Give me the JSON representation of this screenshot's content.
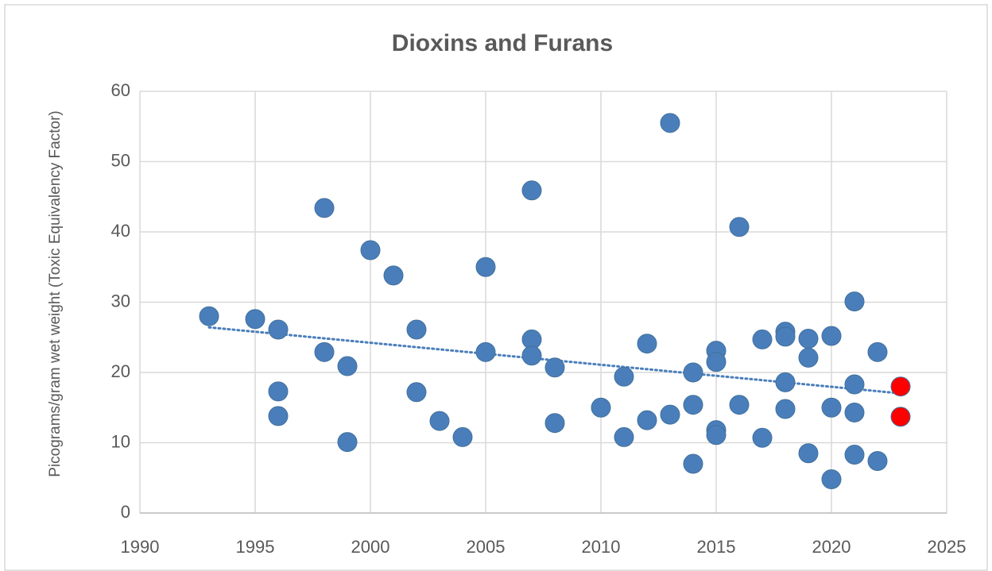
{
  "chart_data": {
    "type": "scatter",
    "title": "Dioxins and Furans",
    "y_label": "Picograms/gram wet weight (Toxic Equivalency Factor)",
    "xlim": [
      1990,
      2025
    ],
    "xticks": [
      1990,
      1995,
      2000,
      2005,
      2010,
      2015,
      2020,
      2025
    ],
    "ylim": [
      0,
      60
    ],
    "yticks": [
      0,
      10,
      20,
      30,
      40,
      50,
      60
    ],
    "grid": true,
    "trendline": true,
    "series": [
      {
        "color": "#4a7ebb",
        "x": [
          1993,
          1995,
          1996,
          1996,
          1996,
          1998,
          1998,
          1999,
          1999,
          2000,
          2001,
          2002,
          2002,
          2003,
          2004,
          2005,
          2005,
          2007,
          2007,
          2007,
          2008,
          2008,
          2010,
          2011,
          2011,
          2012,
          2012,
          2013,
          2013,
          2014,
          2014,
          2014,
          2015,
          2015,
          2015,
          2015,
          2016,
          2016,
          2017,
          2017,
          2018,
          2018,
          2018,
          2018,
          2019,
          2019,
          2019,
          2020,
          2020,
          2020,
          2021,
          2021,
          2021,
          2021,
          2022,
          2022
        ],
        "values": [
          28.0,
          27.6,
          26.1,
          17.3,
          13.8,
          43.4,
          22.9,
          20.9,
          10.1,
          37.4,
          33.8,
          26.1,
          17.2,
          13.1,
          10.8,
          35.0,
          22.9,
          45.9,
          24.7,
          22.4,
          20.7,
          12.8,
          15.0,
          19.4,
          10.8,
          24.1,
          13.2,
          55.5,
          14.0,
          20.0,
          15.4,
          7.0,
          23.1,
          21.5,
          11.8,
          11.1,
          40.7,
          15.4,
          24.7,
          10.7,
          25.8,
          25.1,
          18.6,
          14.8,
          24.8,
          22.1,
          8.5,
          25.2,
          15.0,
          4.8,
          30.1,
          18.3,
          14.3,
          8.3,
          22.9,
          7.4
        ]
      },
      {
        "color": "#ff0000",
        "x": [
          2023,
          2023
        ],
        "values": [
          18.0,
          13.7
        ]
      }
    ]
  }
}
